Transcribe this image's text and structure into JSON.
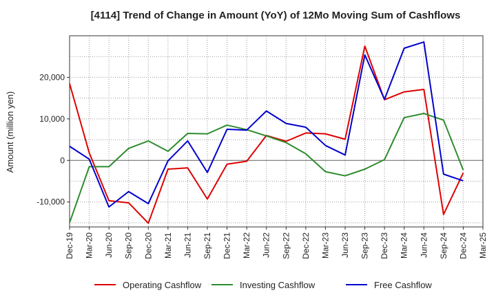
{
  "chart_data": {
    "type": "line",
    "title": "[4114]  Trend of Change in Amount (YoY) of 12Mo Moving Sum of Cashflows",
    "xlabel": "",
    "ylabel": "Amount (million yen)",
    "ylim": [
      -16000,
      30000
    ],
    "yticks": [
      -10000,
      0,
      10000,
      20000
    ],
    "ytick_labels": [
      "-10,000",
      "0",
      "10,000",
      "20,000"
    ],
    "categories": [
      "Dec-19",
      "Mar-20",
      "Jun-20",
      "Sep-20",
      "Dec-20",
      "Mar-21",
      "Jun-21",
      "Sep-21",
      "Dec-21",
      "Mar-22",
      "Jun-22",
      "Sep-22",
      "Dec-22",
      "Mar-23",
      "Jun-23",
      "Sep-23",
      "Dec-23",
      "Mar-24",
      "Jun-24",
      "Sep-24",
      "Dec-24",
      "Mar-25"
    ],
    "grid": true,
    "legend_position": "bottom",
    "series": [
      {
        "name": "Operating Cashflow",
        "color": "#dd0000",
        "values": [
          18500,
          1800,
          -9700,
          -10200,
          -15100,
          -2100,
          -1800,
          -9300,
          -900,
          -200,
          6000,
          4600,
          6600,
          6400,
          5100,
          27500,
          14600,
          16500,
          17100,
          -13000,
          -3000,
          null
        ]
      },
      {
        "name": "Investing Cashflow",
        "color": "#2e8b2e",
        "values": [
          -15000,
          -1500,
          -1500,
          2900,
          4700,
          2200,
          6500,
          6400,
          8500,
          7400,
          5900,
          4300,
          1600,
          -2700,
          -3700,
          -2100,
          200,
          10300,
          11300,
          9700,
          -2300,
          null
        ]
      },
      {
        "name": "Free Cashflow",
        "color": "#0000cc",
        "values": [
          3400,
          300,
          -11200,
          -7500,
          -10400,
          -100,
          4700,
          -2900,
          7500,
          7300,
          11900,
          8900,
          8000,
          3600,
          1300,
          25400,
          14700,
          27000,
          28500,
          -3300,
          -4900,
          null
        ]
      }
    ]
  }
}
